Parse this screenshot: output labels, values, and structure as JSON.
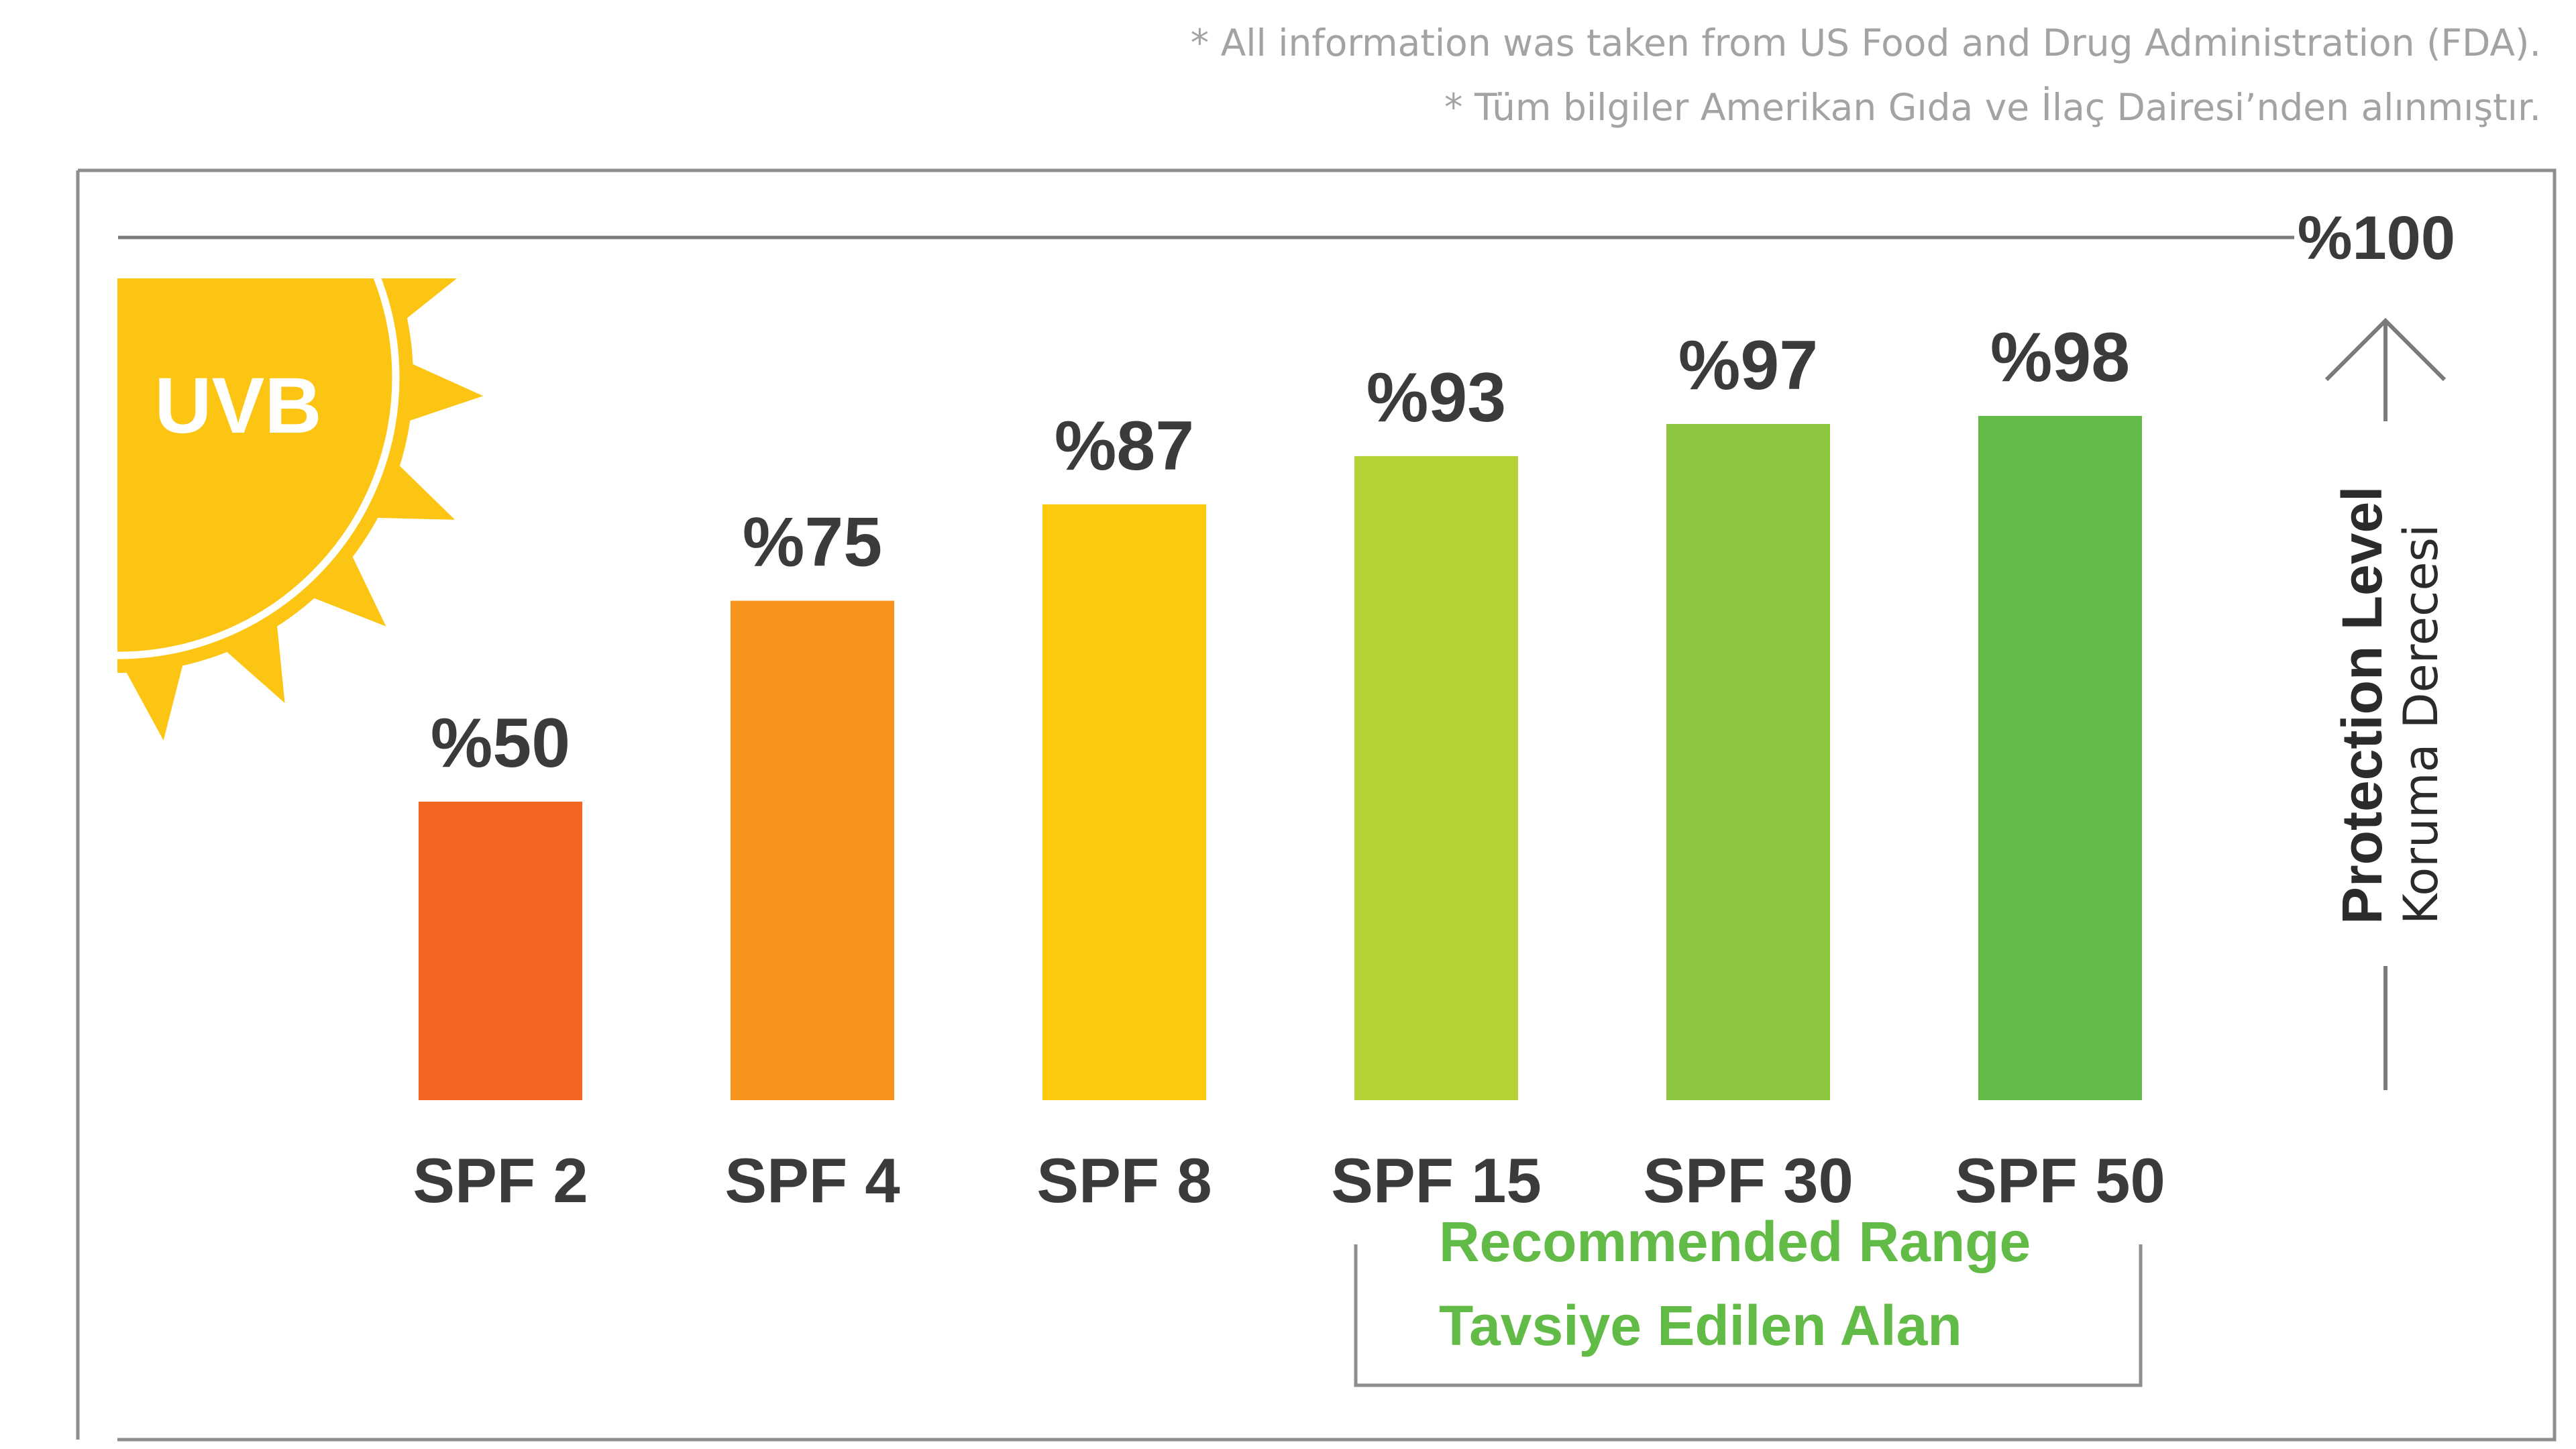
{
  "notes": {
    "english": "* All information was taken from US Food and Drug Administration (FDA).",
    "turkish": "* Tüm bilgiler Amerikan Gıda ve İlaç Dairesi’nden alınmıştır."
  },
  "badge": {
    "label": "UVB",
    "sun_color": "#fdc513"
  },
  "chart_data": {
    "type": "bar",
    "categories": [
      "SPF 2",
      "SPF 4",
      "SPF 8",
      "SPF 15",
      "SPF 30",
      "SPF 50"
    ],
    "values": [
      50,
      75,
      87,
      93,
      97,
      98
    ],
    "value_labels": [
      "%50",
      "%75",
      "%87",
      "%93",
      "%97",
      "%98"
    ],
    "colors": [
      "#f26522",
      "#f7941d",
      "#fdc90e",
      "#b5d334",
      "#8dc63f",
      "#62bb46"
    ],
    "ylim": [
      0,
      100
    ],
    "max_label": "%100",
    "ylabel": "Protection Level",
    "ylabel_secondary": "Koruma Derecesi",
    "grid": false,
    "legend": "none",
    "annotation": {
      "lines": [
        "Recommended Range",
        "Tavsiye Edilen Alan"
      ],
      "categories": [
        "SPF 15",
        "SPF 30",
        "SPF 50"
      ],
      "color": "#62bb46"
    }
  }
}
